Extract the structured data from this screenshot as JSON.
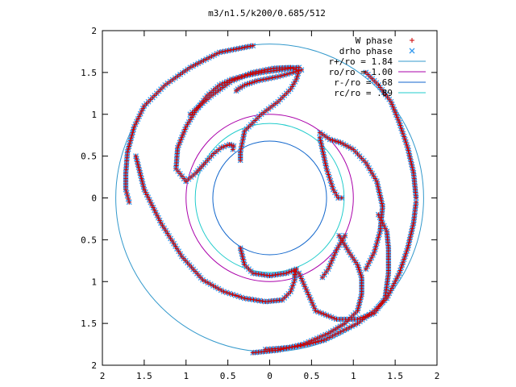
{
  "chart_data": {
    "type": "scatter",
    "title": "m3/n1.5/k200/0.685/512",
    "xlim": [
      -2,
      2
    ],
    "ylim": [
      -2,
      2
    ],
    "grid": false,
    "legend_position": "top-right",
    "x_tick_labels": [
      "2",
      "1.5",
      "1",
      "0.5",
      "0",
      "0.5",
      "1",
      "1.5",
      "2"
    ],
    "x_tick_values": [
      -2,
      -1.5,
      -1,
      -0.5,
      0,
      0.5,
      1,
      1.5,
      2
    ],
    "y_tick_labels": [
      "2",
      "1.5",
      "1",
      "0.5",
      "0",
      "0.5",
      "1",
      "1.5",
      "2"
    ],
    "y_tick_values": [
      2,
      1.5,
      1,
      0.5,
      0,
      -0.5,
      -1,
      -1.5,
      -2
    ],
    "legend": [
      {
        "label": "W phase",
        "color": "#cc0000",
        "marker": "plus"
      },
      {
        "label": "drho phase",
        "color": "#3399ee",
        "marker": "cross"
      },
      {
        "label": "r+/ro = 1.84",
        "color": "#3399cc",
        "marker": "line"
      },
      {
        "label": "ro/ro = 1.00",
        "color": "#aa00aa",
        "marker": "line"
      },
      {
        "label": "r-/ro = .68",
        "color": "#1166cc",
        "marker": "line"
      },
      {
        "label": "rc/ro = .89",
        "color": "#22cccc",
        "marker": "line"
      }
    ],
    "circles": [
      {
        "name": "r+/ro = 1.84",
        "radius": 1.84,
        "color": "#3399cc"
      },
      {
        "name": "ro/ro = 1.00",
        "radius": 1.0,
        "color": "#aa00aa"
      },
      {
        "name": "r-/ro = .68",
        "radius": 0.68,
        "color": "#1166cc"
      },
      {
        "name": "rc/ro = .89",
        "radius": 0.89,
        "color": "#22cccc"
      }
    ],
    "series": [
      {
        "name": "W phase",
        "marker": "plus",
        "color": "#cc0000",
        "x": [],
        "y": []
      },
      {
        "name": "drho phase",
        "marker": "cross",
        "color": "#3399ee",
        "x": [],
        "y": []
      }
    ],
    "arm_traces": [
      {
        "x": [
          -0.2,
          0.1,
          0.4,
          0.7,
          0.9,
          1.05,
          1.1,
          1.1,
          1.05,
          0.95,
          0.83
        ],
        "y": [
          -1.85,
          -1.82,
          -1.75,
          -1.62,
          -1.5,
          -1.35,
          -1.15,
          -0.95,
          -0.8,
          -0.65,
          -0.45
        ]
      },
      {
        "x": [
          -0.2,
          -0.6,
          -0.95,
          -1.25,
          -1.5,
          -1.62,
          -1.7,
          -1.72,
          -1.72,
          -1.68
        ],
        "y": [
          1.82,
          1.74,
          1.56,
          1.35,
          1.1,
          0.85,
          0.55,
          0.3,
          0.1,
          -0.05
        ]
      },
      {
        "x": [
          1.15,
          1.3,
          1.45,
          1.55,
          1.65,
          1.72,
          1.75
        ],
        "y": [
          1.5,
          1.35,
          1.15,
          0.9,
          0.6,
          0.3,
          0.0
        ]
      },
      {
        "x": [
          1.75,
          1.72,
          1.65,
          1.55,
          1.4,
          1.25,
          1.05,
          0.85,
          0.65,
          0.45,
          0.3,
          0.1,
          -0.05
        ],
        "y": [
          -0.05,
          -0.3,
          -0.6,
          -0.9,
          -1.2,
          -1.35,
          -1.5,
          -1.6,
          -1.7,
          -1.75,
          -1.78,
          -1.8,
          -1.81
        ]
      },
      {
        "x": [
          0.35,
          0.55,
          0.8,
          1.05,
          1.25,
          1.38,
          1.42,
          1.42,
          1.4,
          1.3
        ],
        "y": [
          -0.9,
          -1.35,
          -1.45,
          -1.45,
          -1.38,
          -1.2,
          -0.9,
          -0.6,
          -0.4,
          -0.2
        ]
      },
      {
        "x": [
          -0.95,
          -0.7,
          -0.45,
          -0.2,
          0.05,
          0.25,
          0.35,
          0.32,
          0.25,
          0.1,
          -0.1,
          -0.3,
          -0.35,
          -0.35
        ],
        "y": [
          1.0,
          1.22,
          1.4,
          1.5,
          1.55,
          1.56,
          1.52,
          1.42,
          1.3,
          1.15,
          1.0,
          0.8,
          0.55,
          0.45
        ]
      },
      {
        "x": [
          -1.0,
          -0.88,
          -0.77,
          -0.67,
          -0.58,
          -0.48,
          -0.43,
          -0.44
        ],
        "y": [
          0.2,
          0.3,
          0.42,
          0.53,
          0.6,
          0.64,
          0.62,
          0.58
        ]
      },
      {
        "x": [
          -1.0,
          -1.12,
          -1.1,
          -1.0,
          -0.88,
          -0.75,
          -0.6,
          -0.45,
          -0.3,
          -0.1,
          0.05,
          0.25,
          0.35,
          0.38,
          0.28,
          0.1,
          -0.15,
          -0.3,
          -0.38,
          -0.4
        ],
        "y": [
          0.2,
          0.35,
          0.6,
          0.85,
          1.05,
          1.22,
          1.35,
          1.42,
          1.46,
          1.5,
          1.52,
          1.55,
          1.56,
          1.53,
          1.5,
          1.45,
          1.4,
          1.35,
          1.3,
          1.28
        ]
      },
      {
        "x": [
          -1.6,
          -1.5,
          -1.3,
          -1.05,
          -0.8,
          -0.55,
          -0.3,
          -0.05,
          0.15,
          0.25,
          0.3,
          0.3
        ],
        "y": [
          0.5,
          0.1,
          -0.3,
          -0.7,
          -0.98,
          -1.12,
          -1.2,
          -1.24,
          -1.22,
          -1.12,
          -0.98,
          -0.88
        ]
      },
      {
        "x": [
          0.6,
          0.72,
          0.85,
          1.0,
          1.15,
          1.28,
          1.35,
          1.32,
          1.25,
          1.15
        ],
        "y": [
          0.78,
          0.7,
          0.66,
          0.58,
          0.42,
          0.2,
          -0.1,
          -0.4,
          -0.65,
          -0.85
        ]
      },
      {
        "x": [
          0.6,
          0.68,
          0.76,
          0.82,
          0.86
        ],
        "y": [
          0.72,
          0.35,
          0.1,
          0.0,
          0.0
        ]
      },
      {
        "x": [
          0.63,
          0.7,
          0.8,
          0.9
        ],
        "y": [
          -0.95,
          -0.85,
          -0.62,
          -0.45
        ]
      },
      {
        "x": [
          -0.35,
          -0.3,
          -0.2,
          0.0,
          0.2,
          0.32,
          0.3
        ],
        "y": [
          -0.6,
          -0.8,
          -0.9,
          -0.93,
          -0.9,
          -0.85,
          -0.92
        ]
      }
    ]
  }
}
